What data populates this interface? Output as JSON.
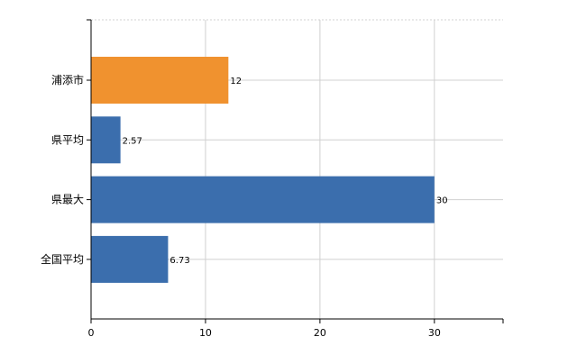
{
  "chart_data": {
    "type": "bar",
    "orientation": "horizontal",
    "categories": [
      "浦添市",
      "県平均",
      "県最大",
      "全国平均"
    ],
    "values": [
      12,
      2.57,
      30,
      6.73
    ],
    "data_labels": [
      "12",
      "2.57",
      "30",
      "6.73"
    ],
    "bar_colors": [
      "#F0922F",
      "#3B6EAD",
      "#3B6EAD",
      "#3B6EAD"
    ],
    "title": "",
    "xlabel": "",
    "ylabel": "",
    "xlim": [
      0,
      36
    ],
    "x_ticks": [
      0,
      10,
      20,
      30
    ],
    "x_tick_labels": [
      "0",
      "10",
      "20",
      "30"
    ],
    "grid": true,
    "legend": "none"
  }
}
